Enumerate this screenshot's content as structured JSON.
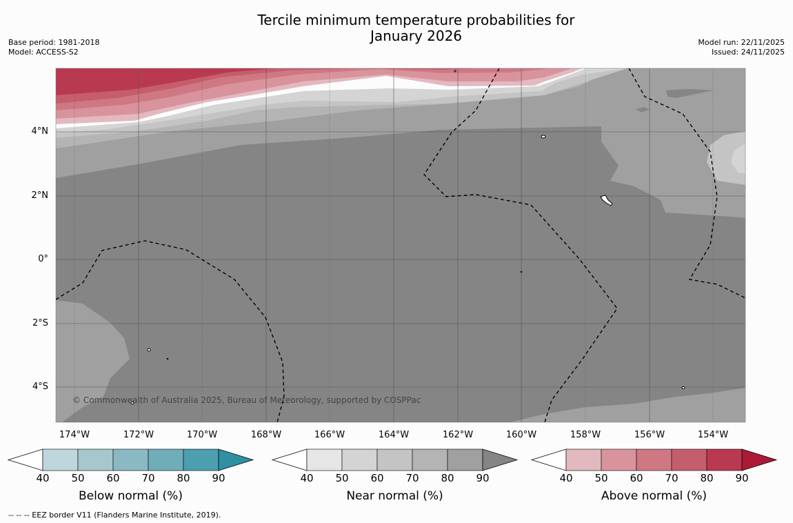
{
  "title_line1": "Tercile minimum temperature probabilities for",
  "title_line2": "January 2026",
  "meta_left": [
    "Base period: 1981-2018",
    "Model: ACCESS-S2"
  ],
  "meta_right": [
    "Model run: 22/11/2025",
    "Issued: 24/11/2025"
  ],
  "latitudes": [
    "4°N",
    "2°N",
    "0°",
    "2°S",
    "4°S"
  ],
  "longitudes": [
    "174°W",
    "172°W",
    "170°W",
    "168°W",
    "166°W",
    "164°W",
    "162°W",
    "160°W",
    "158°W",
    "156°W",
    "154°W"
  ],
  "copyright": "© Commonwealth of Australia 2025, Bureau of Meteorology, supported by COSPPac",
  "colorbars": [
    {
      "title": "Below normal (%)",
      "ticks": [
        "40",
        "50",
        "60",
        "70",
        "80",
        "90"
      ],
      "colors": [
        "#bfd6dc",
        "#a6c8cd",
        "#8bb9c3",
        "#6fadb9",
        "#4c9fae",
        "#2f90a3"
      ]
    },
    {
      "title": "Near normal (%)",
      "ticks": [
        "40",
        "50",
        "60",
        "70",
        "80",
        "90"
      ],
      "colors": [
        "#e6e6e6",
        "#d4d4d4",
        "#c4c4c4",
        "#b4b4b4",
        "#a0a0a0",
        "#858585"
      ]
    },
    {
      "title": "Above normal (%)",
      "ticks": [
        "40",
        "50",
        "60",
        "70",
        "80",
        "90"
      ],
      "colors": [
        "#e3b9c0",
        "#d9939c",
        "#cf7883",
        "#c55e6c",
        "#b93a50",
        "#ad1a38"
      ]
    }
  ],
  "footnote": "--  --  -- EEZ border V11 (Flanders Marine Institute, 2019).",
  "map_colors": {
    "near_90": "#858585",
    "near_80": "#a0a0a0",
    "near_70": "#b4b4b4",
    "near_60": "#c4c4c4",
    "near_50": "#d4d4d4",
    "above_50": "#d9939c",
    "above_60": "#cf7883",
    "above_70": "#c55e6c",
    "above_80": "#b93a50",
    "above_90": "#ad1a38"
  }
}
